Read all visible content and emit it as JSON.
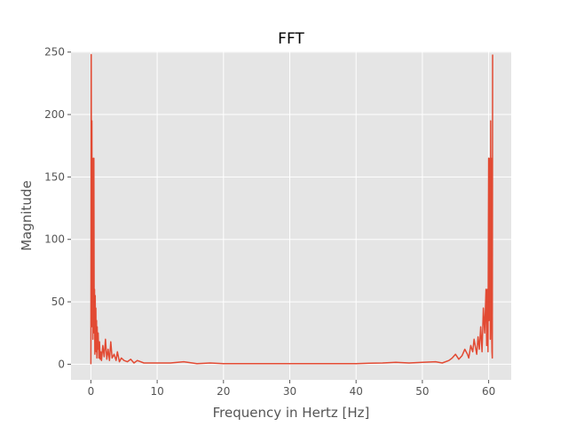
{
  "chart_data": {
    "type": "line",
    "title": "FFT",
    "xlabel": "Frequency in Hertz [Hz]",
    "ylabel": "Magnitude",
    "xlim": [
      -3,
      63.4
    ],
    "ylim": [
      -12.5,
      250.5
    ],
    "xticks": [
      0,
      10,
      20,
      30,
      40,
      50,
      60
    ],
    "yticks": [
      0,
      50,
      100,
      150,
      200,
      250
    ],
    "xtick_labels": [
      "0",
      "10",
      "20",
      "30",
      "40",
      "50",
      "60"
    ],
    "ytick_labels": [
      "0",
      "50",
      "100",
      "150",
      "200",
      "250"
    ],
    "grid": true,
    "style": "ggplot",
    "colors": {
      "background": "#E5E5E5",
      "grid": "#FFFFFF",
      "line": "#E24A33"
    },
    "series": [
      {
        "x": [
          0.0,
          0.05,
          0.1,
          0.15,
          0.2,
          0.25,
          0.3,
          0.35,
          0.4,
          0.45,
          0.5,
          0.55,
          0.6,
          0.65,
          0.7,
          0.75,
          0.8,
          0.85,
          0.9,
          0.95,
          1.0,
          1.1,
          1.2,
          1.3,
          1.4,
          1.5,
          1.6,
          1.8,
          2.0,
          2.2,
          2.4,
          2.6,
          2.8,
          3.0,
          3.2,
          3.5,
          3.8,
          4.0,
          4.3,
          4.6,
          5.0,
          5.5,
          6.0,
          6.5,
          7.0,
          8.0,
          9.0,
          10.0,
          12.0,
          14.0,
          16.0,
          18.0,
          20.0,
          25.0,
          30.0,
          35.0,
          40.0,
          42.0,
          44.0,
          46.0,
          48.0,
          50.0,
          52.0,
          53.0,
          54.0,
          54.5,
          55.0,
          55.5,
          56.0,
          56.4,
          56.8,
          57.0,
          57.3,
          57.6,
          57.8,
          58.0,
          58.2,
          58.4,
          58.6,
          58.8,
          59.0,
          59.2,
          59.4,
          59.6,
          59.7,
          59.8,
          59.9,
          60.0,
          60.05,
          60.1,
          60.15,
          60.2,
          60.25,
          60.3,
          60.35,
          60.4,
          60.45,
          60.5,
          60.55,
          60.6
        ],
        "y": [
          0,
          248,
          30,
          195,
          60,
          165,
          20,
          160,
          40,
          165,
          25,
          60,
          8,
          55,
          20,
          45,
          10,
          35,
          5,
          30,
          12,
          25,
          5,
          18,
          4,
          10,
          3,
          15,
          6,
          20,
          4,
          12,
          3,
          18,
          5,
          8,
          3,
          10,
          2,
          5,
          3,
          2,
          4,
          1,
          3,
          1,
          1,
          1,
          1,
          2,
          0.5,
          1,
          0.5,
          0.5,
          0.5,
          0.5,
          0.5,
          0.8,
          1,
          1.5,
          1,
          1.5,
          2,
          1,
          3,
          5,
          8,
          4,
          7,
          12,
          8,
          5,
          15,
          10,
          20,
          14,
          8,
          22,
          12,
          30,
          10,
          45,
          25,
          60,
          15,
          60,
          10,
          165,
          35,
          160,
          40,
          165,
          20,
          195,
          60,
          165,
          30,
          10,
          5,
          248
        ]
      }
    ]
  }
}
